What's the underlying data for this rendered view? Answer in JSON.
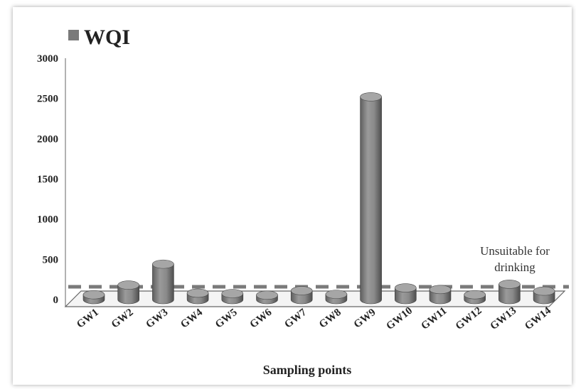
{
  "chart_data": {
    "type": "bar",
    "legend": "WQI",
    "categories": [
      "GW1",
      "GW2",
      "GW3",
      "GW4",
      "GW5",
      "GW6",
      "GW7",
      "GW8",
      "GW9",
      "GW10",
      "GW11",
      "GW12",
      "GW13",
      "GW14"
    ],
    "series": [
      {
        "name": "WQI",
        "values": [
          60,
          180,
          440,
          80,
          75,
          55,
          110,
          65,
          2520,
          145,
          125,
          60,
          190,
          105
        ]
      }
    ],
    "xlabel": "Sampling points",
    "ylabel": "",
    "ylim": [
      0,
      3000
    ],
    "yticks": [
      0,
      500,
      1000,
      1500,
      2000,
      2500,
      3000
    ],
    "threshold": {
      "value": 300,
      "label_line1": "Unsuitable for",
      "label_line2": "drinking"
    },
    "bar_color": "#7a7a7a",
    "grid": false,
    "legend_position": "top-left"
  }
}
